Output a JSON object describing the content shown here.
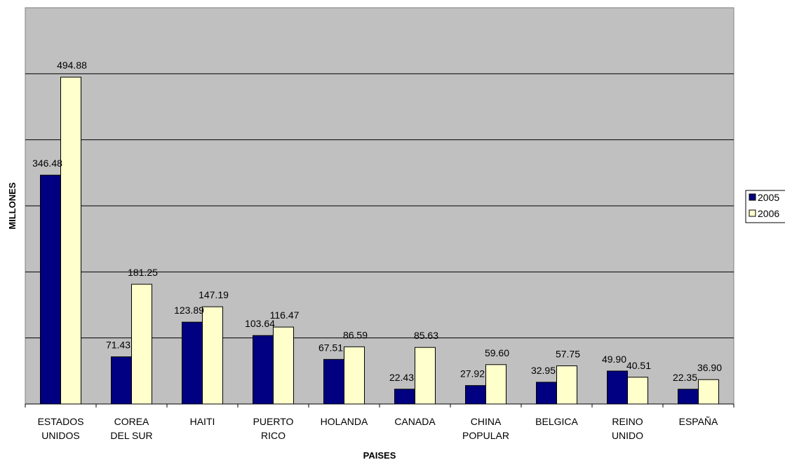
{
  "chart_data": {
    "type": "bar",
    "title": "",
    "xlabel": "PAISES",
    "ylabel": "MILLONES",
    "categories": [
      [
        "ESTADOS",
        "UNIDOS"
      ],
      [
        "COREA",
        "DEL SUR"
      ],
      [
        "HAITI"
      ],
      [
        "PUERTO",
        "RICO"
      ],
      [
        "HOLANDA"
      ],
      [
        "CANADA"
      ],
      [
        "CHINA",
        "POPULAR"
      ],
      [
        "BELGICA"
      ],
      [
        "REINO",
        "UNIDO"
      ],
      [
        "ESPAÑA"
      ]
    ],
    "series": [
      {
        "name": "2005",
        "color": "#000080",
        "values": [
          346.48,
          71.43,
          123.89,
          103.64,
          67.51,
          22.43,
          27.92,
          32.95,
          49.9,
          22.35
        ],
        "labels": [
          "346.48",
          "71.43",
          "123.89",
          "103.64",
          "67.51",
          "22.43",
          "27.92",
          "32.95",
          "49.90",
          "22.35"
        ]
      },
      {
        "name": "2006",
        "color": "#FFFFCC",
        "values": [
          494.88,
          181.25,
          147.19,
          116.47,
          86.59,
          85.63,
          59.6,
          57.75,
          40.51,
          36.9
        ],
        "labels": [
          "494.88",
          "181.25",
          "147.19",
          "116.47",
          "86.59",
          "85.63",
          "59.60",
          "57.75",
          "40.51",
          "36.90"
        ]
      }
    ],
    "ylim": [
      0,
      600
    ],
    "grid": true,
    "plot_background": "#C0C0C0",
    "legend_position": "right"
  }
}
